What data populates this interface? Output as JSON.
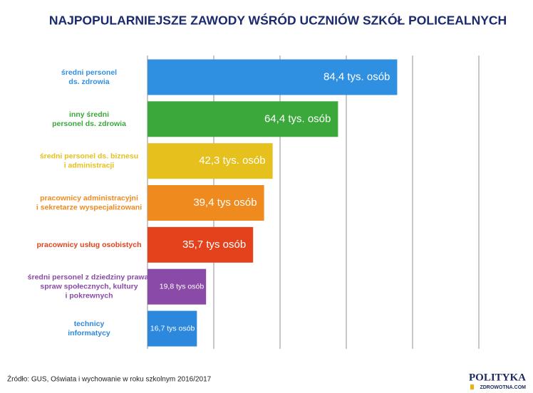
{
  "chart_data": {
    "type": "bar",
    "orientation": "horizontal",
    "title": "NAJPOPULARNIEJSZE ZAWODY WŚRÓD UCZNIÓW SZKÓŁ POLICEALNYCH",
    "categories": [
      "średni personel\nds. zdrowia",
      "inny średni\npersonel ds. zdrowia",
      "średni personel ds. biznesu\ni administracji",
      "pracownicy administracyjni\ni sekretarze wyspecjalizowani",
      "pracownicy usług osobistych",
      "średni personel z dziedziny prawa,\nspraw społecznych, kultury\ni pokrewnych",
      "technicy\ninformatycy"
    ],
    "values": [
      84.4,
      64.4,
      42.3,
      39.4,
      35.7,
      19.8,
      16.7
    ],
    "value_labels": [
      "84,4 tys. osób",
      "64,4 tys. osób",
      "42,3 tys. osób",
      "39,4 tys osób",
      "35,7 tys osób",
      "19,8 tys osób",
      "16,7 tys osób"
    ],
    "colors": [
      "#2f8fe0",
      "#3aa83a",
      "#e6c01c",
      "#ee8a1e",
      "#e3421c",
      "#8a4aa8",
      "#2c88dd"
    ],
    "xlim": [
      0,
      112
    ],
    "xticks": [
      0,
      22.4,
      44.8,
      67.2,
      89.6,
      112
    ],
    "grid": true,
    "source": "Źródło: GUS, Oświata i wychowanie w roku szkolnym 2016/2017",
    "logo": {
      "name": "POLITYKA",
      "sub": "ZDROWOTNA.COM"
    }
  }
}
